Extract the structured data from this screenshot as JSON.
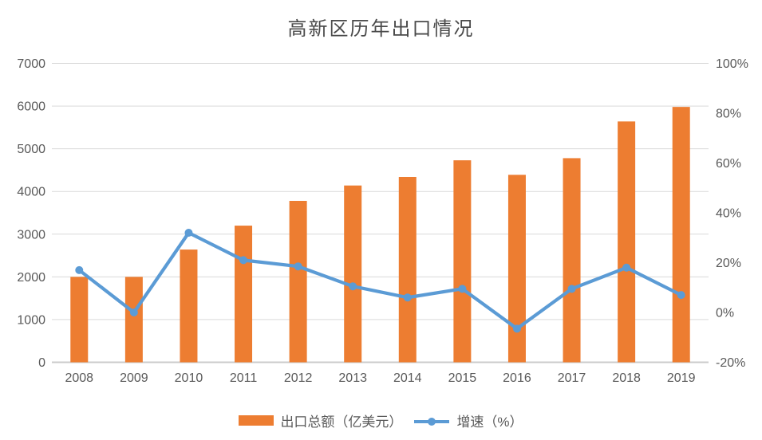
{
  "title": "高新区历年出口情况",
  "colors": {
    "bar": "#ED7D31",
    "line": "#5B9BD5",
    "text": "#595959",
    "title_text": "#4a4a4a",
    "grid": "#D9D9D9",
    "axis_line": "#CBCBCB",
    "background": "#FFFFFF"
  },
  "chart_data": {
    "type": "bar",
    "subtype": "combo-bar-line-dual-axis",
    "title": "高新区历年出口情况",
    "categories": [
      "2008",
      "2009",
      "2010",
      "2011",
      "2012",
      "2013",
      "2014",
      "2015",
      "2016",
      "2017",
      "2018",
      "2019"
    ],
    "series": [
      {
        "name": "出口总额（亿美元）",
        "type": "bar",
        "axis": "left",
        "color": "#ED7D31",
        "values": [
          2000,
          2000,
          2640,
          3200,
          3780,
          4140,
          4340,
          4730,
          4390,
          4780,
          5640,
          5980
        ]
      },
      {
        "name": "增速（%）",
        "type": "line",
        "axis": "right",
        "color": "#5B9BD5",
        "marker": "circle",
        "values": [
          17,
          0,
          32,
          21,
          18.5,
          10.5,
          6,
          9.5,
          -6.5,
          9.5,
          18,
          7
        ]
      }
    ],
    "left_axis": {
      "min": 0,
      "max": 7000,
      "step": 1000,
      "tick_labels": [
        "0",
        "1000",
        "2000",
        "3000",
        "4000",
        "5000",
        "6000",
        "7000"
      ]
    },
    "right_axis": {
      "min": -20,
      "max": 100,
      "step": 20,
      "tick_labels": [
        "-20%",
        "0%",
        "20%",
        "40%",
        "60%",
        "80%",
        "100%"
      ]
    },
    "grid": true,
    "legend_position": "bottom",
    "xlabel": "",
    "ylabel": ""
  }
}
